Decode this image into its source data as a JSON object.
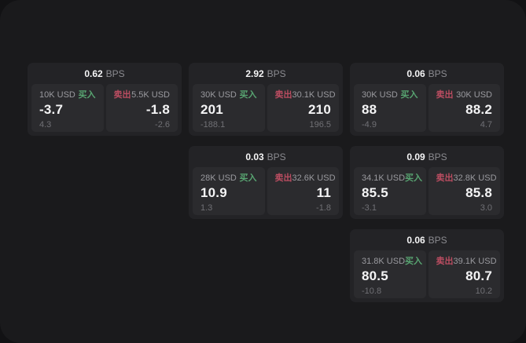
{
  "labels": {
    "bps_unit": "BPS",
    "buy": "买入",
    "sell": "卖出"
  },
  "colors": {
    "surface": "#1a1a1c",
    "card": "#232326",
    "panel": "#2b2b2e",
    "buy": "#58a471",
    "sell": "#bb4d61"
  },
  "cards": [
    {
      "bps": "0.62",
      "buy": {
        "amount": "10K USD",
        "price": "-3.7",
        "delta": "4.3"
      },
      "sell": {
        "amount": "5.5K USD",
        "price": "-1.8",
        "delta": "-2.6"
      }
    },
    {
      "bps": "2.92",
      "buy": {
        "amount": "30K USD",
        "price": "201",
        "delta": "-188.1"
      },
      "sell": {
        "amount": "30.1K USD",
        "price": "210",
        "delta": "196.5"
      }
    },
    {
      "bps": "0.06",
      "buy": {
        "amount": "30K USD",
        "price": "88",
        "delta": "-4.9"
      },
      "sell": {
        "amount": "30K USD",
        "price": "88.2",
        "delta": "4.7"
      }
    },
    {
      "bps": "0.03",
      "buy": {
        "amount": "28K USD",
        "price": "10.9",
        "delta": "1.3"
      },
      "sell": {
        "amount": "32.6K USD",
        "price": "11",
        "delta": "-1.8"
      }
    },
    {
      "bps": "0.09",
      "buy": {
        "amount": "34.1K USD",
        "price": "85.5",
        "delta": "-3.1"
      },
      "sell": {
        "amount": "32.8K USD",
        "price": "85.8",
        "delta": "3.0"
      }
    },
    {
      "bps": "0.06",
      "buy": {
        "amount": "31.8K USD",
        "price": "80.5",
        "delta": "-10.8"
      },
      "sell": {
        "amount": "39.1K USD",
        "price": "80.7",
        "delta": "10.2"
      }
    }
  ]
}
